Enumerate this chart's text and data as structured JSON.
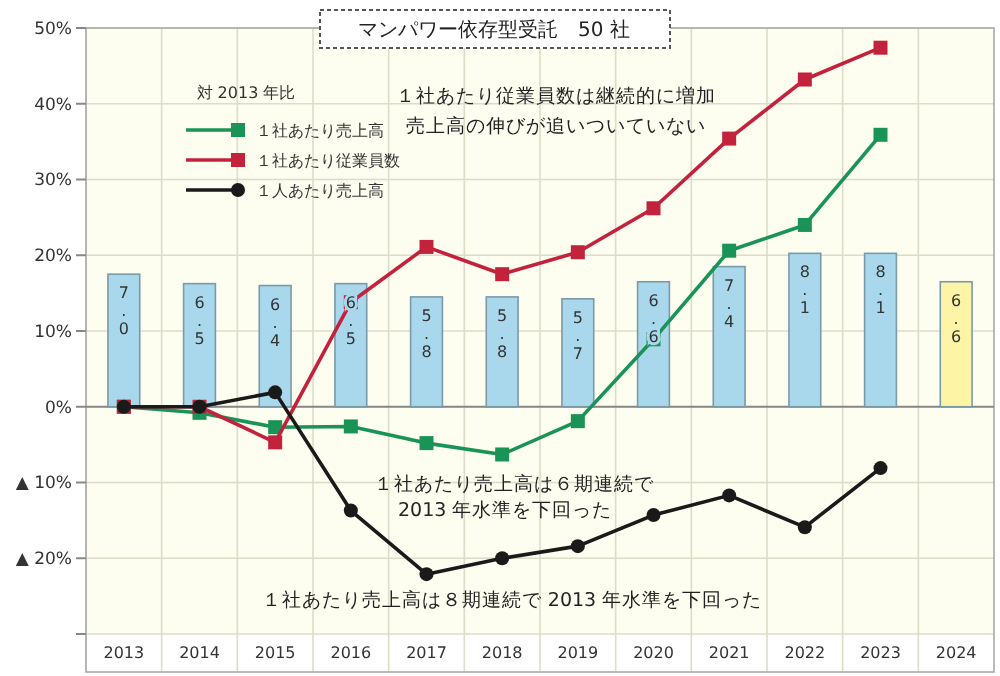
{
  "chart_data": {
    "type": "line",
    "title": "マンパワー依存型受託　50 社",
    "legend_title": "対 2013 年比",
    "categories": [
      "2013",
      "2014",
      "2015",
      "2016",
      "2017",
      "2018",
      "2019",
      "2020",
      "2021",
      "2022",
      "2023",
      "2024"
    ],
    "series": [
      {
        "type": "bar",
        "axis": "y2",
        "colors": [
          "#a9d8ec",
          "#a9d8ec",
          "#a9d8ec",
          "#a9d8ec",
          "#a9d8ec",
          "#a9d8ec",
          "#a9d8ec",
          "#a9d8ec",
          "#a9d8ec",
          "#a9d8ec",
          "#a9d8ec",
          "#fdf4a6"
        ],
        "values": [
          7.0,
          6.5,
          6.4,
          6.5,
          5.8,
          5.8,
          5.7,
          6.6,
          7.4,
          8.1,
          8.1,
          6.6
        ],
        "value_labels": [
          "7.0",
          "6.5",
          "6.4",
          "6.5",
          "5.8",
          "5.8",
          "5.7",
          "6.6",
          "7.4",
          "8.1",
          "8.1",
          "6.6"
        ]
      },
      {
        "name": "１社あたり売上高",
        "color": "#1a9356",
        "values": [
          0,
          -0.8,
          -2.7,
          -2.6,
          -4.8,
          -6.3,
          -1.9,
          8.9,
          20.6,
          24.0,
          35.9,
          null
        ]
      },
      {
        "name": "１社あたり従業員数",
        "color": "#c3223c",
        "values": [
          0,
          0,
          -4.7,
          13.8,
          21.1,
          17.5,
          20.4,
          26.2,
          35.4,
          43.2,
          47.4,
          null
        ]
      },
      {
        "name": "１人あたり売上高",
        "color": "#1a1a1a",
        "marker": "circle",
        "values": [
          0,
          0,
          1.9,
          -13.7,
          -22.1,
          -20.0,
          -18.4,
          -14.3,
          -11.7,
          -15.9,
          -8.1,
          null
        ]
      }
    ],
    "marker": "square",
    "line_style": "solid",
    "ylim": [
      -30,
      50
    ],
    "yticks": [
      {
        "value": -30,
        "label": null
      },
      {
        "value": -20,
        "label": "▲ 20%"
      },
      {
        "value": -10,
        "label": "▲ 10%"
      },
      {
        "value": 0,
        "label": "0%"
      },
      {
        "value": 10,
        "label": "10%"
      },
      {
        "value": 20,
        "label": "20%"
      },
      {
        "value": 30,
        "label": "30%"
      },
      {
        "value": 40,
        "label": "40%"
      },
      {
        "value": 50,
        "label": "50%"
      }
    ],
    "y2lim": [
      -12,
      20
    ],
    "grid": true,
    "legend": "top left",
    "annotations": [
      "１社あたり従業員数は継続的に増加",
      "売上高の伸びが追いついていない",
      "１社あたり売上高は６期連続で",
      "2013 年水準を下回った",
      "１社あたり売上高は８期連続で 2013 年水準を下回った"
    ]
  }
}
